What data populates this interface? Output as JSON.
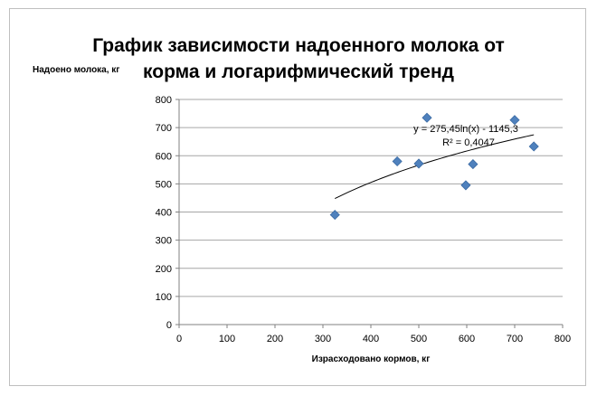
{
  "chart_data": {
    "type": "scatter",
    "title_line1": "График зависимости надоенного молока от",
    "title_line2": "корма и логарифмический тренд",
    "xlabel": "Израсходовано кормов, кг",
    "ylabel": "Надоено молока, кг",
    "xlim": [
      0,
      800
    ],
    "ylim": [
      0,
      800
    ],
    "x_ticks": [
      0,
      100,
      200,
      300,
      400,
      500,
      600,
      700,
      800
    ],
    "y_ticks": [
      0,
      100,
      200,
      300,
      400,
      500,
      600,
      700,
      800
    ],
    "grid": "horizontal",
    "points": [
      {
        "x": 325,
        "y": 390
      },
      {
        "x": 455,
        "y": 580
      },
      {
        "x": 500,
        "y": 572
      },
      {
        "x": 517,
        "y": 735
      },
      {
        "x": 598,
        "y": 495
      },
      {
        "x": 613,
        "y": 570
      },
      {
        "x": 700,
        "y": 727
      },
      {
        "x": 740,
        "y": 633
      }
    ],
    "trendline": {
      "type": "logarithmic",
      "a": 275.45,
      "b": -1145.3,
      "x_range": [
        325,
        740
      ],
      "equation_label": "y = 275,45ln(x) - 1145,3",
      "r2_label": "R² = 0,4047"
    },
    "colors": {
      "marker": "#4f81bd",
      "marker_stroke": "#3a6aa3",
      "trend": "#000000",
      "grid": "#a6a6a6"
    }
  }
}
